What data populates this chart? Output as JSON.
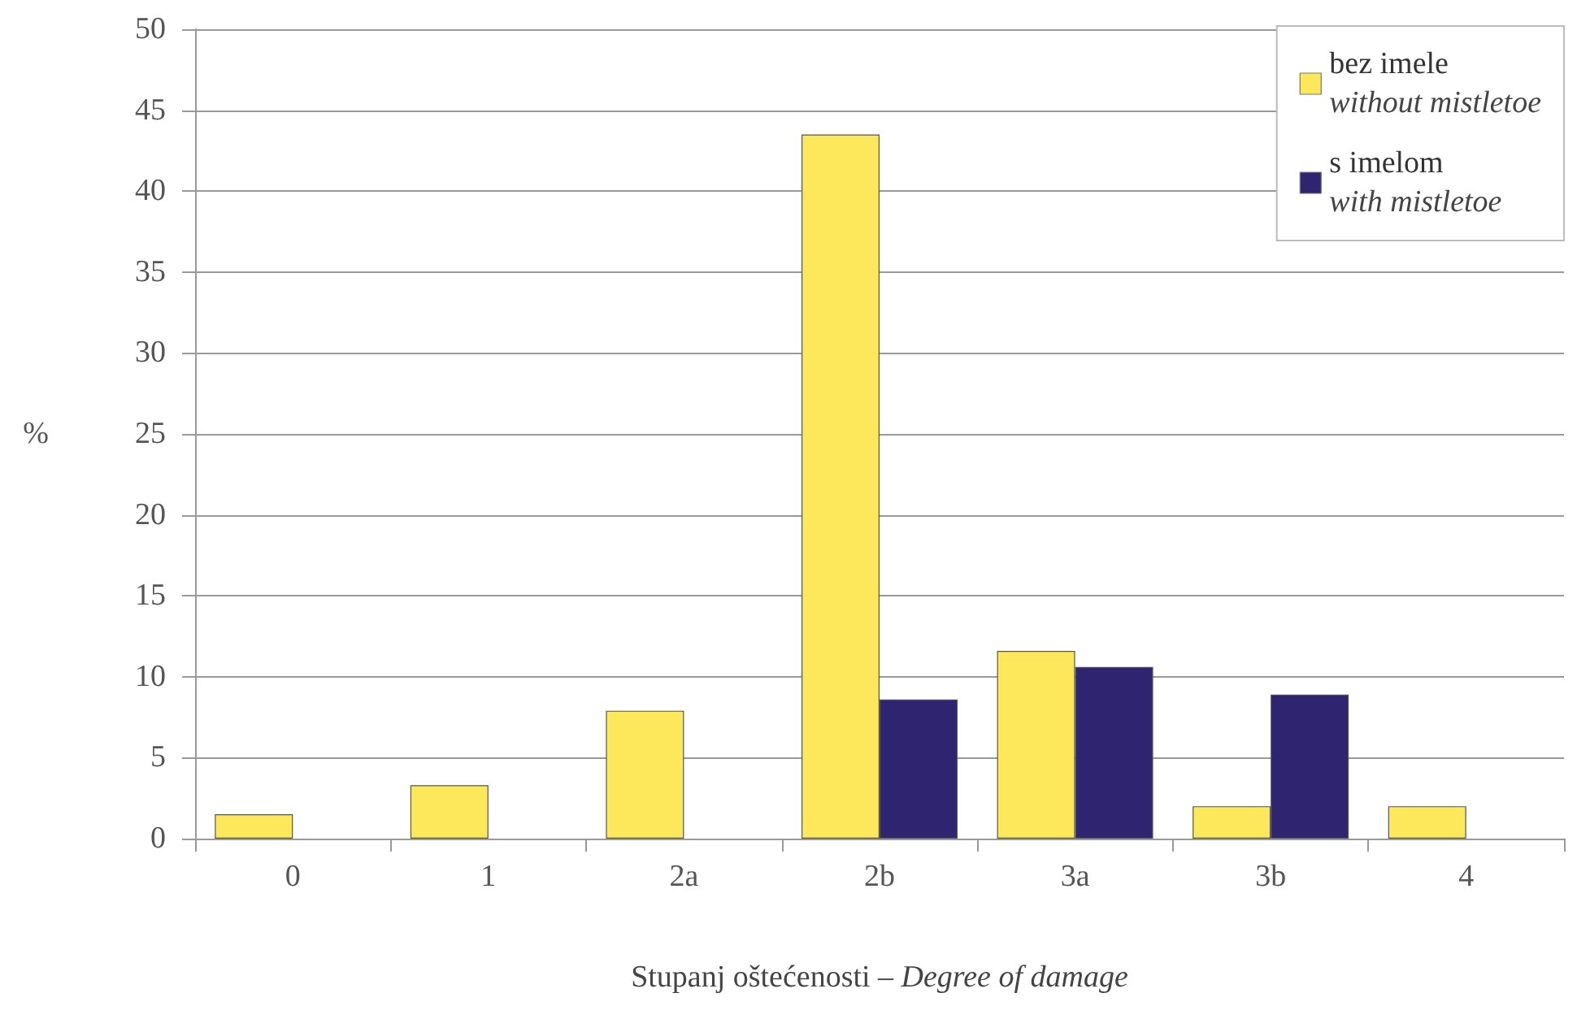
{
  "chart_data": {
    "type": "bar",
    "xlabel": "Stupanj oštećenosti – Degree of damage",
    "ylabel": "%",
    "categories": [
      "0",
      "1",
      "2a",
      "2b",
      "3a",
      "3b",
      "4"
    ],
    "series": [
      {
        "name": "bez imele\nwithout mistletoe",
        "color": "#fce85a",
        "values": [
          1.5,
          3.3,
          7.9,
          43.5,
          11.6,
          2.0,
          2.0
        ]
      },
      {
        "name": "s imelom\nwith mistletoe",
        "color": "#2e2470",
        "values": [
          null,
          null,
          null,
          8.6,
          10.6,
          8.9,
          null
        ]
      }
    ],
    "ylim": [
      0,
      50
    ],
    "yticks": [
      0,
      5,
      10,
      15,
      20,
      25,
      30,
      35,
      40,
      45,
      50
    ],
    "grid": "y",
    "legend": "top right"
  }
}
